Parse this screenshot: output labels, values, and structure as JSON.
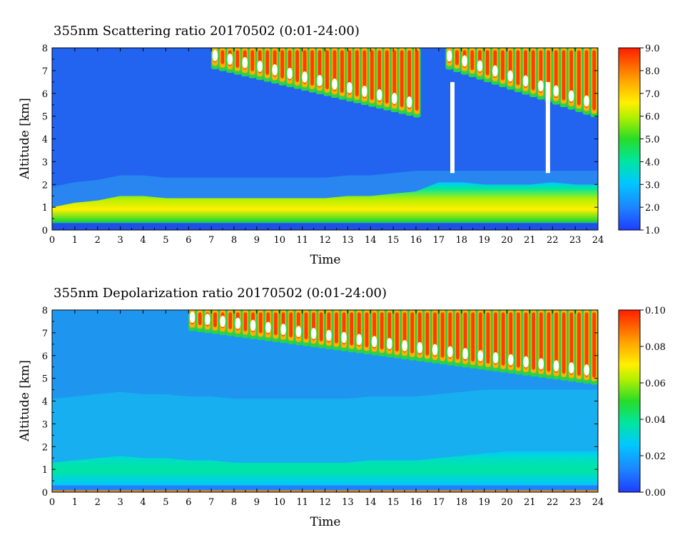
{
  "chart_data": [
    {
      "type": "heatmap",
      "title": "355nm Scattering ratio  20170502 (0:01-24:00)",
      "xlabel": "Time",
      "ylabel": "Altitude [km]",
      "xlim": [
        0,
        24
      ],
      "ylim": [
        0,
        8
      ],
      "x_ticks": [
        "0",
        "1",
        "2",
        "3",
        "4",
        "5",
        "6",
        "7",
        "8",
        "9",
        "10",
        "11",
        "12",
        "13",
        "14",
        "15",
        "16",
        "17",
        "18",
        "19",
        "20",
        "21",
        "22",
        "23",
        "24"
      ],
      "y_ticks": [
        "0",
        "1",
        "2",
        "3",
        "4",
        "5",
        "6",
        "7",
        "8"
      ],
      "colorbar": {
        "min": 1.0,
        "max": 9.0,
        "ticks": [
          "1.0",
          "2.0",
          "3.0",
          "4.0",
          "5.0",
          "6.0",
          "7.0",
          "8.0",
          "9.0"
        ]
      },
      "features": {
        "boundary_layer_top_km": [
          1.0,
          1.2,
          1.3,
          1.5,
          1.5,
          1.4,
          1.4,
          1.4,
          1.4,
          1.4,
          1.4,
          1.4,
          1.4,
          1.5,
          1.5,
          1.6,
          1.7,
          2.1,
          2.1,
          2.0,
          2.0,
          2.0,
          2.1,
          2.0,
          2.0
        ],
        "cirrus_spans_hours": [
          [
            7,
            16.2
          ],
          [
            17.3,
            24
          ]
        ],
        "no_data_column_hours": [
          17.6,
          21.8
        ]
      }
    },
    {
      "type": "heatmap",
      "title": "355nm Depolarization ratio  20170502 (0:01-24:00)",
      "xlabel": "Time",
      "ylabel": "Altitude [km]",
      "xlim": [
        0,
        24
      ],
      "ylim": [
        0,
        8
      ],
      "x_ticks": [
        "0",
        "1",
        "2",
        "3",
        "4",
        "5",
        "6",
        "7",
        "8",
        "9",
        "10",
        "11",
        "12",
        "13",
        "14",
        "15",
        "16",
        "17",
        "18",
        "19",
        "20",
        "21",
        "22",
        "23",
        "24"
      ],
      "y_ticks": [
        "0",
        "1",
        "2",
        "3",
        "4",
        "5",
        "6",
        "7",
        "8"
      ],
      "colorbar": {
        "min": 0.0,
        "max": 0.1,
        "ticks": [
          "0.00",
          "0.02",
          "0.04",
          "0.06",
          "0.08",
          "0.10"
        ]
      },
      "features": {
        "boundary_layer_top_km": [
          1.3,
          1.4,
          1.5,
          1.6,
          1.5,
          1.5,
          1.4,
          1.4,
          1.3,
          1.3,
          1.3,
          1.3,
          1.3,
          1.3,
          1.4,
          1.4,
          1.4,
          1.5,
          1.6,
          1.7,
          1.8,
          1.8,
          1.8,
          1.8,
          1.8
        ],
        "cirrus_spans_hours": [
          [
            6,
            24
          ]
        ]
      }
    }
  ]
}
